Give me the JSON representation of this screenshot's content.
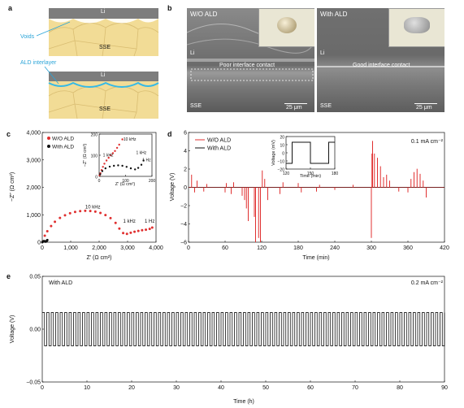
{
  "panel_a": {
    "label": "a",
    "top_li": "Li",
    "top_sse": "SSE",
    "voids": "Voids",
    "ald_interlayer": "ALD interlayer",
    "bottom_li": "Li",
    "bottom_sse": "SSE",
    "colors": {
      "li": "#7d7d7d",
      "sse_grain": "#f2dc96",
      "ald": "#35b9e6",
      "annotation": "#2aa4d8"
    }
  },
  "panel_b": {
    "label": "b",
    "left": {
      "title": "W/O ALD",
      "li": "Li",
      "sse": "SSE",
      "contact": "Poor interface contact",
      "scale": "25 μm"
    },
    "right": {
      "title": "With ALD",
      "li": "Li",
      "sse": "SSE",
      "contact": "Good interface contact",
      "scale": "25 μm"
    }
  },
  "chart_data": [
    {
      "id": "c",
      "label": "c",
      "type": "scatter",
      "xlabel": "Z′ (Ω cm²)",
      "ylabel": "−Z″ (Ω cm²)",
      "xlim": [
        0,
        4500
      ],
      "ylim": [
        0,
        4200
      ],
      "xticks": [
        "0",
        "1,000",
        "2,000",
        "3,000",
        "4,000"
      ],
      "yticks": [
        "0",
        "1,000",
        "2,000",
        "3,000",
        "4,000"
      ],
      "legend": [
        "W/O ALD",
        "With ALD"
      ],
      "annotations": [
        "10 kHz",
        "1 kHz",
        "1 Hz"
      ],
      "series": [
        {
          "name": "W/O ALD",
          "color": "#e03030",
          "x": [
            30,
            100,
            200,
            350,
            500,
            700,
            900,
            1100,
            1300,
            1500,
            1700,
            1900,
            2100,
            2300,
            2500,
            2700,
            2900,
            3050,
            3200,
            3350,
            3500,
            3650,
            3800,
            3950,
            4100,
            4250,
            4350
          ],
          "y": [
            30,
            250,
            420,
            620,
            780,
            930,
            1030,
            1110,
            1160,
            1190,
            1200,
            1195,
            1170,
            1120,
            1040,
            920,
            740,
            520,
            350,
            320,
            360,
            400,
            430,
            460,
            480,
            510,
            560
          ]
        },
        {
          "name": "With ALD",
          "color": "#111111",
          "x": [
            0,
            20,
            40,
            60,
            80,
            100,
            120,
            140,
            160,
            180,
            200
          ],
          "y": [
            0,
            20,
            35,
            40,
            38,
            32,
            25,
            22,
            30,
            50,
            80
          ]
        }
      ],
      "inset": {
        "xlabel": "Z′ (Ω cm²)",
        "ylabel": "−Z″ (Ω cm²)",
        "xlim": [
          0,
          250
        ],
        "ylim": [
          0,
          200
        ],
        "xticks": [
          "0",
          "100",
          "200"
        ],
        "yticks": [
          "0",
          "100",
          "200"
        ],
        "annotations": [
          "10 kHz",
          "1 kHz",
          "1 kHz",
          "1 Hz"
        ],
        "series": [
          {
            "name": "W/O ALD",
            "color": "#e03030",
            "x": [
              2,
              6,
              12,
              18,
              25,
              35,
              45,
              55,
              65,
              75,
              85,
              95,
              110
            ],
            "y": [
              5,
              15,
              30,
              45,
              60,
              75,
              88,
              100,
              110,
              120,
              135,
              150,
              175
            ]
          },
          {
            "name": "With ALD",
            "color": "#111111",
            "x": [
              5,
              15,
              30,
              50,
              70,
              90,
              110,
              130,
              150,
              170,
              185,
              200,
              210
            ],
            "y": [
              10,
              25,
              38,
              46,
              50,
              52,
              50,
              45,
              38,
              33,
              40,
              55,
              75
            ]
          }
        ]
      }
    },
    {
      "id": "d",
      "label": "d",
      "type": "line",
      "xlabel": "Time (min)",
      "ylabel": "Voltage (V)",
      "xlim": [
        0,
        420
      ],
      "ylim": [
        -6.5,
        6.5
      ],
      "xticks": [
        "0",
        "60",
        "120",
        "180",
        "240",
        "300",
        "360",
        "420"
      ],
      "yticks": [
        "6",
        "4",
        "2",
        "0",
        "−2",
        "−4",
        "−6"
      ],
      "legend": [
        "W/O ALD",
        "With ALD"
      ],
      "current": "0.1 mA cm⁻²",
      "spikes": {
        "x": [
          5,
          10,
          14,
          25,
          30,
          60,
          62,
          70,
          74,
          88,
          92,
          95,
          98,
          108,
          110,
          115,
          118,
          121,
          125,
          130,
          150,
          155,
          180,
          185,
          210,
          215,
          240,
          270,
          300,
          301,
          302,
          305,
          310,
          315,
          320,
          325,
          330,
          345,
          360,
          365,
          370,
          375,
          380,
          385,
          390
        ],
        "y": [
          1.5,
          -0.6,
          0.8,
          -0.5,
          0.4,
          -0.6,
          0.5,
          -0.8,
          0.6,
          -1.0,
          -1.5,
          -2.5,
          -4.0,
          -3.5,
          -6.5,
          -6.0,
          -6.5,
          2.0,
          1.0,
          -1.5,
          -0.8,
          0.6,
          0.5,
          -0.6,
          -0.5,
          0.3,
          -0.3,
          0.3,
          -6.0,
          4.0,
          5.5,
          4.0,
          3.5,
          2.5,
          1.2,
          1.5,
          0.8,
          -0.5,
          -0.6,
          1.0,
          1.8,
          2.2,
          1.6,
          0.8,
          -1.2
        ]
      },
      "inset": {
        "xlabel": "Time (min)",
        "ylabel": "Voltage (mV)",
        "xlim": [
          110,
          190
        ],
        "ylim": [
          -20,
          20
        ],
        "xticks": [
          "120",
          "150",
          "180"
        ],
        "yticks": [
          "20",
          "10",
          "0",
          "−10",
          "−20"
        ],
        "x": [
          110,
          120,
          120,
          150,
          150,
          180,
          180,
          190
        ],
        "y": [
          -13,
          -13,
          13,
          13,
          -13,
          -13,
          13,
          13
        ]
      }
    },
    {
      "id": "e",
      "label": "e",
      "type": "line",
      "xlabel": "Time (h)",
      "ylabel": "Voltage (V)",
      "xlim": [
        0,
        90
      ],
      "ylim": [
        -0.07,
        0.07
      ],
      "xticks": [
        "0",
        "10",
        "20",
        "30",
        "40",
        "50",
        "60",
        "70",
        "80",
        "90"
      ],
      "yticks": [
        "0.05",
        "0.00",
        "−0.05"
      ],
      "legend": [
        "With ALD"
      ],
      "current": "0.2 mA cm⁻²",
      "amplitude": 0.022,
      "cycles": 90
    }
  ]
}
